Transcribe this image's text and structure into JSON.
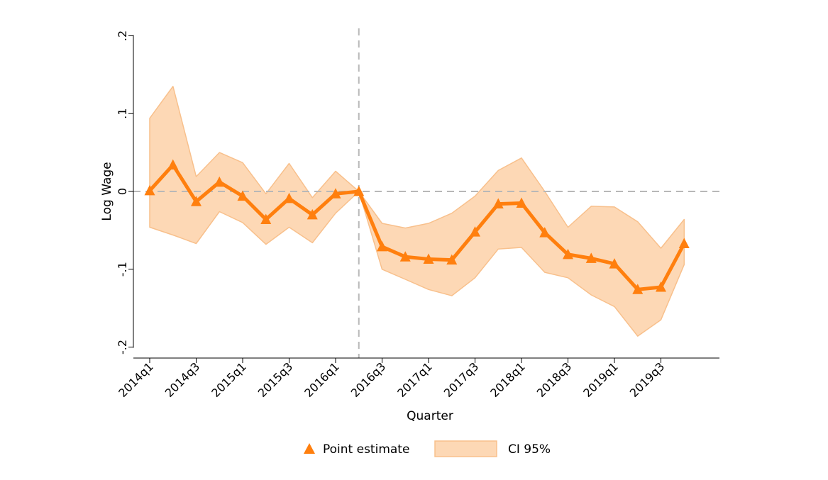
{
  "chart_data": {
    "type": "line",
    "title": "",
    "xlabel": "Quarter",
    "ylabel": "Log Wage",
    "ylim": [
      -0.2,
      0.2
    ],
    "yticks": [
      -0.2,
      -0.1,
      0,
      0.1,
      0.2
    ],
    "ytick_labels": [
      "-.2",
      "-.1",
      "0",
      ".1",
      ".2"
    ],
    "xtick_labels": [
      "2014q1",
      "2014q3",
      "2015q1",
      "2015q3",
      "2016q1",
      "2016q3",
      "2017q1",
      "2017q3",
      "2018q1",
      "2018q3",
      "2019q1",
      "2019q3"
    ],
    "x": [
      "2014q1",
      "2014q2",
      "2014q3",
      "2014q4",
      "2015q1",
      "2015q2",
      "2015q3",
      "2015q4",
      "2016q1",
      "2016q2",
      "2016q3",
      "2016q4",
      "2017q1",
      "2017q2",
      "2017q3",
      "2017q4",
      "2018q1",
      "2018q2",
      "2018q3",
      "2018q4",
      "2019q1",
      "2019q2",
      "2019q3",
      "2019q4"
    ],
    "reference_line_x": "2016q2",
    "reference_line_y": 0,
    "series": [
      {
        "name": "Point estimate",
        "values": [
          0.001,
          0.034,
          -0.013,
          0.012,
          -0.006,
          -0.036,
          -0.009,
          -0.03,
          -0.003,
          0.0,
          -0.071,
          -0.084,
          -0.087,
          -0.088,
          -0.052,
          -0.016,
          -0.015,
          -0.053,
          -0.081,
          -0.086,
          -0.093,
          -0.126,
          -0.123,
          -0.067
        ],
        "color": "#ff7f0e"
      },
      {
        "name": "CI 95%",
        "lower": [
          -0.046,
          -0.056,
          -0.067,
          -0.026,
          -0.04,
          -0.068,
          -0.046,
          -0.066,
          -0.028,
          0.0,
          -0.1,
          -0.113,
          -0.126,
          -0.134,
          -0.111,
          -0.074,
          -0.072,
          -0.104,
          -0.111,
          -0.133,
          -0.148,
          -0.186,
          -0.165,
          -0.094
        ],
        "upper": [
          0.094,
          0.135,
          0.019,
          0.05,
          0.037,
          -0.003,
          0.036,
          -0.008,
          0.026,
          0.0,
          -0.041,
          -0.047,
          -0.041,
          -0.028,
          -0.006,
          0.027,
          0.043,
          0.0,
          -0.046,
          -0.019,
          -0.02,
          -0.039,
          -0.073,
          -0.036
        ],
        "fill": "#fdd8b5",
        "edge": "#f8c08c"
      }
    ],
    "legend": {
      "position": "bottom",
      "entries": [
        "Point estimate",
        "CI 95%"
      ]
    }
  }
}
